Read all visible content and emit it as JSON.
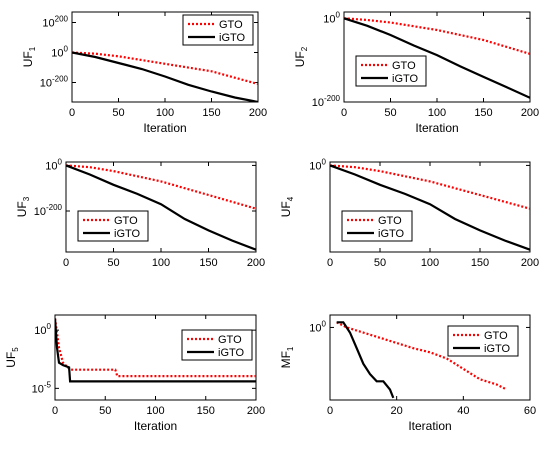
{
  "figure": {
    "background": "#ffffff"
  },
  "chart_data": [
    {
      "id": "uf1",
      "type": "line",
      "ylabel": "UF",
      "ylabel_sub": "1",
      "xlabel": "Iteration",
      "xlim": [
        0,
        200
      ],
      "xticks": [
        "0",
        "50",
        "100",
        "150",
        "200"
      ],
      "ylog": true,
      "ylim": [
        -330,
        270
      ],
      "yticks": [
        {
          "exp": 200,
          "base": "10",
          "sup": "200"
        },
        {
          "exp": 0,
          "base": "10",
          "sup": "0"
        },
        {
          "exp": -200,
          "base": "10",
          "sup": "-200"
        }
      ],
      "legend": "top-right",
      "series": [
        {
          "name": "GTO",
          "style": "dotted",
          "color": "#ff0000",
          "x": [
            0,
            25,
            50,
            100,
            150,
            200
          ],
          "y": [
            0,
            -8,
            -25,
            -75,
            -125,
            -210
          ]
        },
        {
          "name": "iGTO",
          "style": "solid",
          "color": "#000000",
          "x": [
            0,
            25,
            50,
            75,
            100,
            125,
            150,
            175,
            200
          ],
          "y": [
            0,
            -30,
            -70,
            -110,
            -160,
            -215,
            -260,
            -300,
            -330
          ]
        }
      ]
    },
    {
      "id": "uf2",
      "type": "line",
      "ylabel": "UF",
      "ylabel_sub": "2",
      "xlabel": "Iteration",
      "xlim": [
        0,
        200
      ],
      "xticks": [
        "0",
        "50",
        "100",
        "150",
        "200"
      ],
      "ylog": true,
      "ylim": [
        -200,
        15
      ],
      "yticks": [
        {
          "exp": 0,
          "base": "10",
          "sup": "0"
        },
        {
          "exp": -200,
          "base": "10",
          "sup": "-200"
        }
      ],
      "legend": "bottom-left",
      "series": [
        {
          "name": "GTO",
          "style": "dotted",
          "color": "#ff0000",
          "x": [
            0,
            25,
            50,
            100,
            150,
            200
          ],
          "y": [
            0,
            -4,
            -10,
            -28,
            -52,
            -85
          ]
        },
        {
          "name": "iGTO",
          "style": "solid",
          "color": "#000000",
          "x": [
            0,
            25,
            50,
            75,
            100,
            125,
            150,
            175,
            200
          ],
          "y": [
            0,
            -18,
            -40,
            -65,
            -88,
            -115,
            -140,
            -165,
            -190
          ]
        }
      ]
    },
    {
      "id": "uf3",
      "type": "line",
      "ylabel": "UF",
      "ylabel_sub": "3",
      "xlabel": "",
      "xlim": [
        0,
        200
      ],
      "xticks": [
        "0",
        "50",
        "100",
        "150",
        "200"
      ],
      "ylog": true,
      "ylim": [
        -380,
        15
      ],
      "yticks": [
        {
          "exp": 0,
          "base": "10",
          "sup": "0"
        },
        {
          "exp": -200,
          "base": "10",
          "sup": "-200"
        }
      ],
      "legend": "bottom-left",
      "series": [
        {
          "name": "GTO",
          "style": "dotted",
          "color": "#ff0000",
          "x": [
            0,
            25,
            50,
            100,
            150,
            200
          ],
          "y": [
            0,
            -8,
            -25,
            -70,
            -130,
            -190
          ]
        },
        {
          "name": "iGTO",
          "style": "solid",
          "color": "#000000",
          "x": [
            0,
            25,
            50,
            75,
            100,
            125,
            150,
            175,
            200
          ],
          "y": [
            0,
            -40,
            -85,
            -125,
            -170,
            -235,
            -285,
            -330,
            -370
          ]
        }
      ]
    },
    {
      "id": "uf4",
      "type": "line",
      "ylabel": "UF",
      "ylabel_sub": "4",
      "xlabel": "",
      "xlim": [
        0,
        200
      ],
      "xticks": [
        "0",
        "50",
        "100",
        "150",
        "200"
      ],
      "ylog": true,
      "ylim": [
        -380,
        15
      ],
      "yticks": [
        {
          "exp": 0,
          "base": "10",
          "sup": "0"
        }
      ],
      "legend": "bottom-left",
      "series": [
        {
          "name": "GTO",
          "style": "dotted",
          "color": "#ff0000",
          "x": [
            0,
            25,
            50,
            100,
            150,
            200
          ],
          "y": [
            0,
            -8,
            -25,
            -70,
            -130,
            -190
          ]
        },
        {
          "name": "iGTO",
          "style": "solid",
          "color": "#000000",
          "x": [
            0,
            25,
            50,
            75,
            100,
            125,
            150,
            175,
            200
          ],
          "y": [
            0,
            -40,
            -85,
            -125,
            -170,
            -235,
            -285,
            -330,
            -370
          ]
        }
      ]
    },
    {
      "id": "uf5",
      "type": "line",
      "ylabel": "UF",
      "ylabel_sub": "5",
      "xlabel": "Iteration",
      "xlim": [
        0,
        200
      ],
      "xticks": [
        "0",
        "50",
        "100",
        "150",
        "200"
      ],
      "ylog": true,
      "ylim": [
        -6,
        1.3
      ],
      "yticks": [
        {
          "exp": 0,
          "base": "10",
          "sup": "0"
        },
        {
          "exp": -5,
          "base": "10",
          "sup": "-5"
        }
      ],
      "legend": "top-right",
      "series": [
        {
          "name": "GTO",
          "style": "dotted",
          "color": "#ff0000",
          "x": [
            0,
            2,
            4,
            8,
            15,
            60,
            62,
            200
          ],
          "y": [
            1.0,
            -0.2,
            -1.5,
            -2.8,
            -3.4,
            -3.4,
            -3.95,
            -3.95
          ]
        },
        {
          "name": "iGTO",
          "style": "solid",
          "color": "#000000",
          "x": [
            0,
            2,
            4,
            8,
            14,
            15,
            200
          ],
          "y": [
            1.0,
            -1.5,
            -2.8,
            -3.0,
            -3.2,
            -4.4,
            -4.4
          ]
        }
      ]
    },
    {
      "id": "mf1",
      "type": "line",
      "ylabel": "MF",
      "ylabel_sub": "1",
      "xlabel": "Iteration",
      "xlim": [
        0,
        60
      ],
      "xticks": [
        "0",
        "20",
        "40",
        "60"
      ],
      "ylog": true,
      "ylim": [
        -0.7,
        0.12
      ],
      "yticks": [
        {
          "exp": 0,
          "base": "10",
          "sup": "0"
        }
      ],
      "legend": "top-right",
      "series": [
        {
          "name": "GTO",
          "style": "dotted",
          "color": "#ff0000",
          "x": [
            2,
            5,
            10,
            15,
            20,
            25,
            30,
            35,
            40,
            45,
            50,
            53
          ],
          "y": [
            0.05,
            0.0,
            -0.05,
            -0.1,
            -0.15,
            -0.2,
            -0.24,
            -0.3,
            -0.4,
            -0.5,
            -0.55,
            -0.6
          ]
        },
        {
          "name": "iGTO",
          "style": "solid",
          "color": "#000000",
          "x": [
            2,
            4,
            6,
            8,
            10,
            12,
            14,
            16,
            18,
            19
          ],
          "y": [
            0.05,
            0.05,
            -0.05,
            -0.2,
            -0.35,
            -0.45,
            -0.52,
            -0.52,
            -0.6,
            -0.68
          ]
        }
      ]
    }
  ]
}
